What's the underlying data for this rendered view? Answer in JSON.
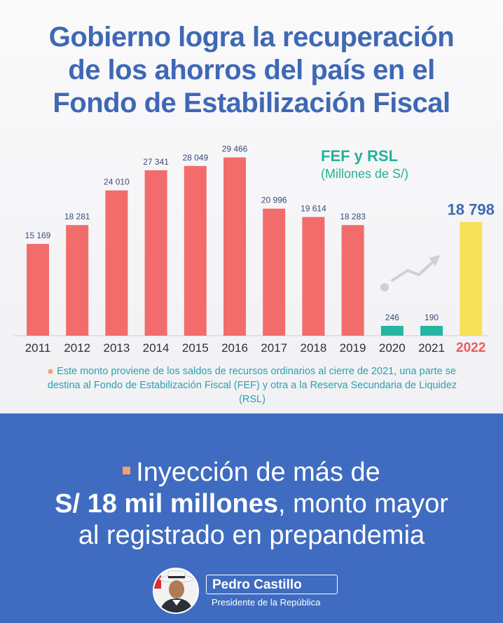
{
  "title": {
    "line1_pre": "Gobierno logra la ",
    "line1_bold": "recuperación",
    "line2_bold": "de los ahorros",
    "line2_post": " del país en el",
    "line3_bold": "Fondo de Estabilización Fiscal"
  },
  "legend": {
    "title": "FEF y RSL",
    "subtitle": "(Millones de S/)"
  },
  "chart_data": {
    "type": "bar",
    "title": "FEF y RSL",
    "ylabel": "(Millones de S/)",
    "categories": [
      "2011",
      "2012",
      "2013",
      "2014",
      "2015",
      "2016",
      "2017",
      "2018",
      "2019",
      "2020",
      "2021",
      "2022"
    ],
    "values": [
      15169,
      18281,
      24010,
      27341,
      28049,
      29466,
      20996,
      19614,
      18283,
      246,
      190,
      18798
    ],
    "value_labels": [
      "15 169",
      "18 281",
      "24 010",
      "27 341",
      "28 049",
      "29 466",
      "20 996",
      "19 614",
      "18 283",
      "246",
      "190",
      "18 798"
    ],
    "ylim": [
      0,
      30000
    ],
    "colors": {
      "regular": "#f26c6c",
      "low": "#26b5a0",
      "highlight": "#f7e05a",
      "label": "#3a4a7a",
      "highlight_label": "#3f68b5",
      "highlight_year": "#ef5a5a"
    }
  },
  "note": "Este monto proviene de los saldos de recursos ordinarios al cierre de 2021, una parte se destina al Fondo de Estabilización Fiscal (FEF) y otra a la Reserva Secundaria de Liquidez (RSL)",
  "headline": {
    "line1": "Inyección de más de",
    "line2_bold": "S/ 18 mil millones",
    "line2_post": ",  monto mayor",
    "line3": "al registrado en prepandemia"
  },
  "signature": {
    "name": "Pedro Castillo",
    "role": "Presidente de la República"
  }
}
